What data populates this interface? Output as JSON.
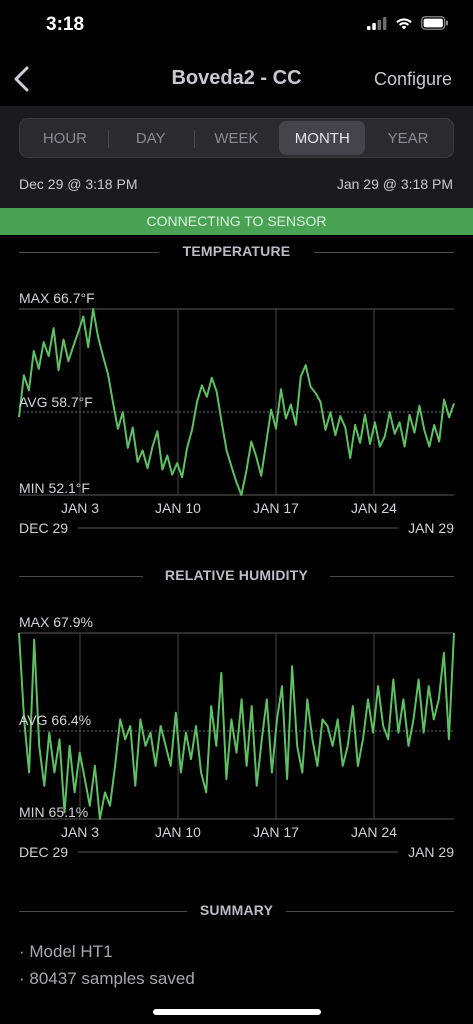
{
  "status_bar": {
    "time": "3:18"
  },
  "nav": {
    "title": "Boveda2 - CC",
    "configure_label": "Configure"
  },
  "period_tabs": [
    {
      "label": "HOUR",
      "selected": false
    },
    {
      "label": "DAY",
      "selected": false
    },
    {
      "label": "WEEK",
      "selected": false
    },
    {
      "label": "MONTH",
      "selected": true
    },
    {
      "label": "YEAR",
      "selected": false
    }
  ],
  "range": {
    "start": "Dec 29 @ 3:18 PM",
    "end": "Jan 29 @ 3:18 PM"
  },
  "banner": {
    "text": "CONNECTING TO SENSOR"
  },
  "colors": {
    "series": "#5fbf63",
    "banner": "#4aa255"
  },
  "temperature": {
    "title": "TEMPERATURE",
    "max_label": "MAX 66.7°F",
    "avg_label": "AVG 58.7°F",
    "min_label": "MIN 52.1°F",
    "date_start": "DEC 29",
    "date_end": "JAN 29",
    "chart_data": {
      "type": "line",
      "series_unit": "°F",
      "ylim": [
        52.1,
        66.7
      ],
      "avg": 58.7,
      "x_ticks": [
        "JAN 3",
        "JAN 10",
        "JAN 17",
        "JAN 24"
      ],
      "x_range": [
        "DEC 29",
        "JAN 29"
      ],
      "values": [
        58.2,
        61.5,
        60.3,
        63.4,
        62.0,
        64.1,
        63.0,
        65.2,
        61.9,
        64.3,
        62.6,
        63.8,
        64.9,
        66.1,
        63.7,
        66.7,
        64.5,
        63.0,
        61.6,
        59.4,
        57.3,
        58.6,
        55.8,
        57.4,
        54.7,
        55.6,
        54.2,
        55.9,
        57.1,
        54.1,
        55.2,
        53.7,
        54.6,
        53.5,
        55.8,
        57.2,
        59.4,
        60.7,
        59.8,
        61.3,
        60.2,
        57.8,
        55.6,
        54.3,
        53.1,
        52.1,
        54.0,
        56.3,
        55.1,
        53.6,
        56.2,
        58.8,
        57.3,
        60.4,
        58.1,
        59.2,
        57.6,
        61.4,
        62.3,
        60.6,
        60.1,
        59.4,
        57.2,
        58.6,
        56.8,
        58.3,
        57.4,
        55.0,
        57.6,
        56.2,
        58.4,
        56.1,
        57.8,
        55.9,
        56.7,
        58.6,
        56.9,
        57.8,
        55.9,
        58.4,
        57.0,
        59.1,
        57.2,
        55.9,
        57.6,
        56.3,
        59.6,
        58.2,
        59.3
      ]
    }
  },
  "humidity": {
    "title": "RELATIVE HUMIDITY",
    "max_label": "MAX 67.9%",
    "avg_label": "AVG 66.4%",
    "min_label": "MIN 65.1%",
    "date_start": "DEC 29",
    "date_end": "JAN 29",
    "chart_data": {
      "type": "line",
      "series_unit": "%",
      "ylim": [
        65.1,
        67.9
      ],
      "avg": 66.4,
      "x_ticks": [
        "JAN 3",
        "JAN 10",
        "JAN 17",
        "JAN 24"
      ],
      "x_range": [
        "DEC 29",
        "JAN 29"
      ],
      "values": [
        67.9,
        66.6,
        65.8,
        67.8,
        66.2,
        65.6,
        66.4,
        65.8,
        66.3,
        65.2,
        66.2,
        65.5,
        66.1,
        65.7,
        65.3,
        65.9,
        65.1,
        65.5,
        65.3,
        65.9,
        66.6,
        66.3,
        66.5,
        65.6,
        66.6,
        66.2,
        66.4,
        65.9,
        66.5,
        66.2,
        65.9,
        66.7,
        65.8,
        66.4,
        66.0,
        66.5,
        65.8,
        65.5,
        66.8,
        66.2,
        67.3,
        65.7,
        66.6,
        66.1,
        66.9,
        65.9,
        66.8,
        65.6,
        66.3,
        66.9,
        65.8,
        66.6,
        67.1,
        65.7,
        67.4,
        66.2,
        65.8,
        66.9,
        66.3,
        65.9,
        66.6,
        66.5,
        66.2,
        66.6,
        65.9,
        66.2,
        66.8,
        65.9,
        66.3,
        66.9,
        66.4,
        67.1,
        66.5,
        66.3,
        67.2,
        66.4,
        66.9,
        66.2,
        66.6,
        67.2,
        66.4,
        67.1,
        66.6,
        66.9,
        67.6,
        66.3,
        67.9
      ]
    }
  },
  "summary": {
    "title": "SUMMARY",
    "items": [
      "· Model HT1",
      "· 80437 samples saved"
    ]
  }
}
